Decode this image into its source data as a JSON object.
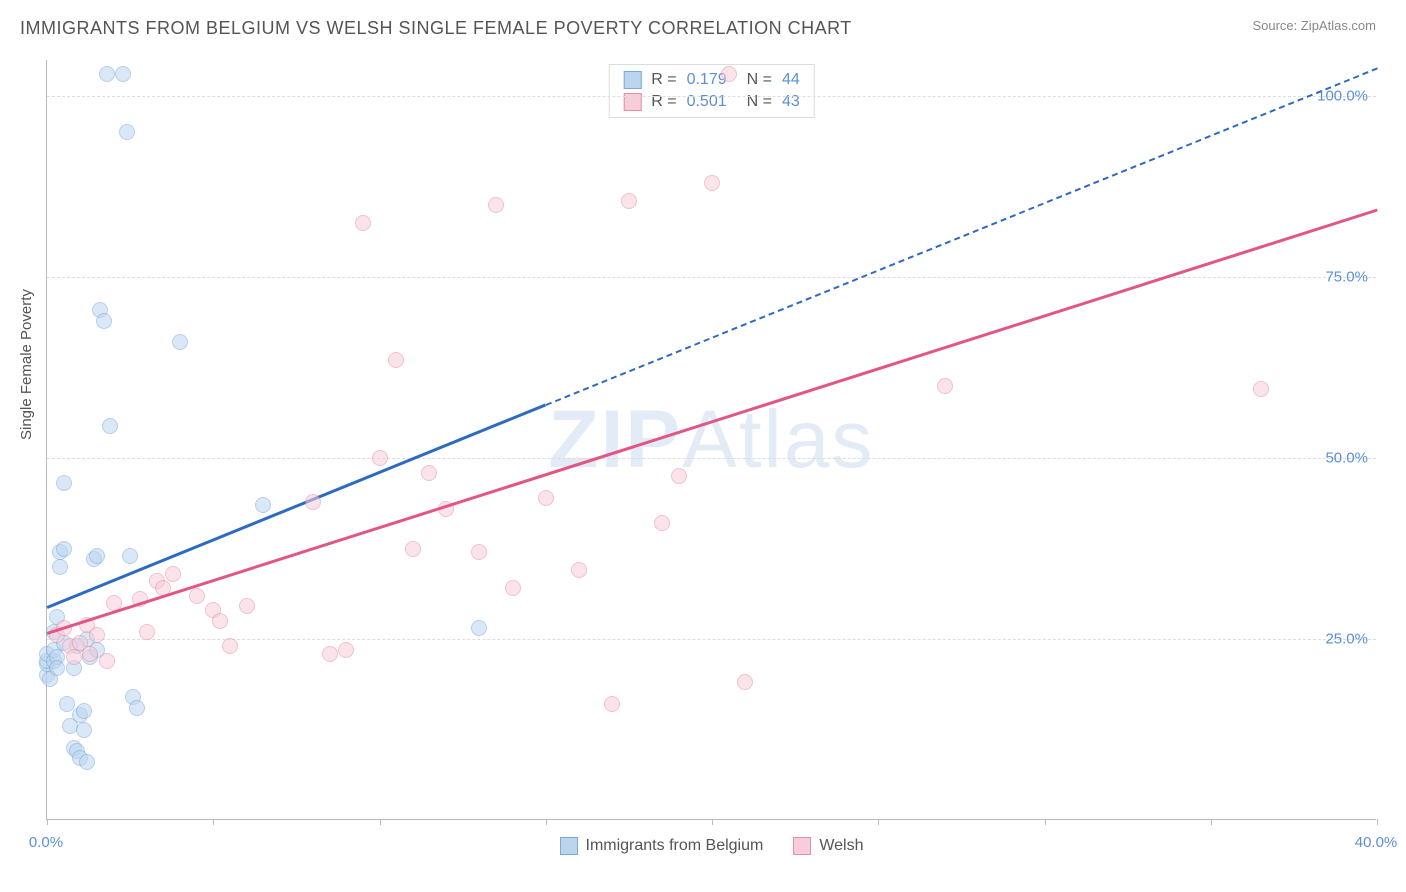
{
  "header": {
    "title": "IMMIGRANTS FROM BELGIUM VS WELSH SINGLE FEMALE POVERTY CORRELATION CHART",
    "source_prefix": "Source: ",
    "source_name": "ZipAtlas.com"
  },
  "chart": {
    "type": "scatter",
    "ylabel": "Single Female Poverty",
    "watermark_prefix": "ZIP",
    "watermark_suffix": "Atlas",
    "background_color": "#ffffff",
    "grid_color": "#dddddd",
    "axis_color": "#bbbbbb",
    "tick_label_color": "#5b8fd6",
    "axis_label_color": "#555555",
    "xlim": [
      0,
      40
    ],
    "ylim": [
      0,
      105
    ],
    "x_ticks": [
      0,
      5,
      10,
      15,
      20,
      25,
      30,
      35,
      40
    ],
    "x_tick_labels": {
      "0": "0.0%",
      "40": "40.0%"
    },
    "y_gridlines": [
      25,
      50,
      75,
      100
    ],
    "y_tick_labels": {
      "25": "25.0%",
      "50": "50.0%",
      "75": "75.0%",
      "100": "100.0%"
    },
    "marker_radius": 8,
    "marker_opacity": 0.55,
    "series": [
      {
        "name": "Immigrants from Belgium",
        "label": "Immigrants from Belgium",
        "fill_color": "#bcd5ef",
        "stroke_color": "#7aaad9",
        "trend_color": "#2e6bc0",
        "r": "0.179",
        "n": "44",
        "trend": {
          "x1": 0,
          "y1": 29.5,
          "x2": 15,
          "y2": 57.5,
          "x2_ext": 40,
          "y2_ext": 104
        },
        "points": [
          [
            0.0,
            20.0
          ],
          [
            0.0,
            21.5
          ],
          [
            0.0,
            22.0
          ],
          [
            0.0,
            23.0
          ],
          [
            0.1,
            19.5
          ],
          [
            0.2,
            22.0
          ],
          [
            0.2,
            23.5
          ],
          [
            0.2,
            26.0
          ],
          [
            0.3,
            22.5
          ],
          [
            0.3,
            28.0
          ],
          [
            0.4,
            35.0
          ],
          [
            0.4,
            37.0
          ],
          [
            0.5,
            46.5
          ],
          [
            0.5,
            37.5
          ],
          [
            0.5,
            24.5
          ],
          [
            0.6,
            16.0
          ],
          [
            0.7,
            13.0
          ],
          [
            0.8,
            10.0
          ],
          [
            0.9,
            9.5
          ],
          [
            1.0,
            14.5
          ],
          [
            1.0,
            8.5
          ],
          [
            1.1,
            15.0
          ],
          [
            1.1,
            12.5
          ],
          [
            1.2,
            8.0
          ],
          [
            1.3,
            22.5
          ],
          [
            1.4,
            36.0
          ],
          [
            1.5,
            36.5
          ],
          [
            1.6,
            70.5
          ],
          [
            1.7,
            69.0
          ],
          [
            1.8,
            103.0
          ],
          [
            1.9,
            54.5
          ],
          [
            2.3,
            103.0
          ],
          [
            2.4,
            95.0
          ],
          [
            2.5,
            36.5
          ],
          [
            2.6,
            17.0
          ],
          [
            2.7,
            15.5
          ],
          [
            4.0,
            66.0
          ],
          [
            6.5,
            43.5
          ],
          [
            13.0,
            26.5
          ],
          [
            1.2,
            25.0
          ],
          [
            0.8,
            21.0
          ],
          [
            1.5,
            23.5
          ],
          [
            0.3,
            21.0
          ],
          [
            0.9,
            24.0
          ]
        ]
      },
      {
        "name": "Welsh",
        "label": "Welsh",
        "fill_color": "#f6cdd8",
        "stroke_color": "#e48fa8",
        "trend_color": "#e25685",
        "r": "0.501",
        "n": "43",
        "trend": {
          "x1": 0,
          "y1": 26.0,
          "x2": 40,
          "y2": 84.5
        },
        "points": [
          [
            0.3,
            25.5
          ],
          [
            0.5,
            26.5
          ],
          [
            0.7,
            24.0
          ],
          [
            0.8,
            22.5
          ],
          [
            1.0,
            24.5
          ],
          [
            1.2,
            27.0
          ],
          [
            1.3,
            23.0
          ],
          [
            1.5,
            25.5
          ],
          [
            1.8,
            22.0
          ],
          [
            2.0,
            30.0
          ],
          [
            2.8,
            30.5
          ],
          [
            3.0,
            26.0
          ],
          [
            3.3,
            33.0
          ],
          [
            3.5,
            32.0
          ],
          [
            3.8,
            34.0
          ],
          [
            4.5,
            31.0
          ],
          [
            5.0,
            29.0
          ],
          [
            5.2,
            27.5
          ],
          [
            6.0,
            29.5
          ],
          [
            5.5,
            24.0
          ],
          [
            8.0,
            44.0
          ],
          [
            8.5,
            23.0
          ],
          [
            9.0,
            23.5
          ],
          [
            9.5,
            82.5
          ],
          [
            10.0,
            50.0
          ],
          [
            10.5,
            63.5
          ],
          [
            11.0,
            37.5
          ],
          [
            11.5,
            48.0
          ],
          [
            12.0,
            43.0
          ],
          [
            13.0,
            37.0
          ],
          [
            13.5,
            85.0
          ],
          [
            14.0,
            32.0
          ],
          [
            15.0,
            44.5
          ],
          [
            16.0,
            34.5
          ],
          [
            17.0,
            16.0
          ],
          [
            17.5,
            85.5
          ],
          [
            18.5,
            41.0
          ],
          [
            19.0,
            47.5
          ],
          [
            20.0,
            88.0
          ],
          [
            20.5,
            103.0
          ],
          [
            21.0,
            19.0
          ],
          [
            27.0,
            60.0
          ],
          [
            36.5,
            59.5
          ]
        ]
      }
    ]
  },
  "legend_bottom": [
    {
      "label": "Immigrants from Belgium",
      "fill": "#bcd5ef",
      "stroke": "#7aaad9"
    },
    {
      "label": "Welsh",
      "fill": "#f6cdd8",
      "stroke": "#e48fa8"
    }
  ]
}
